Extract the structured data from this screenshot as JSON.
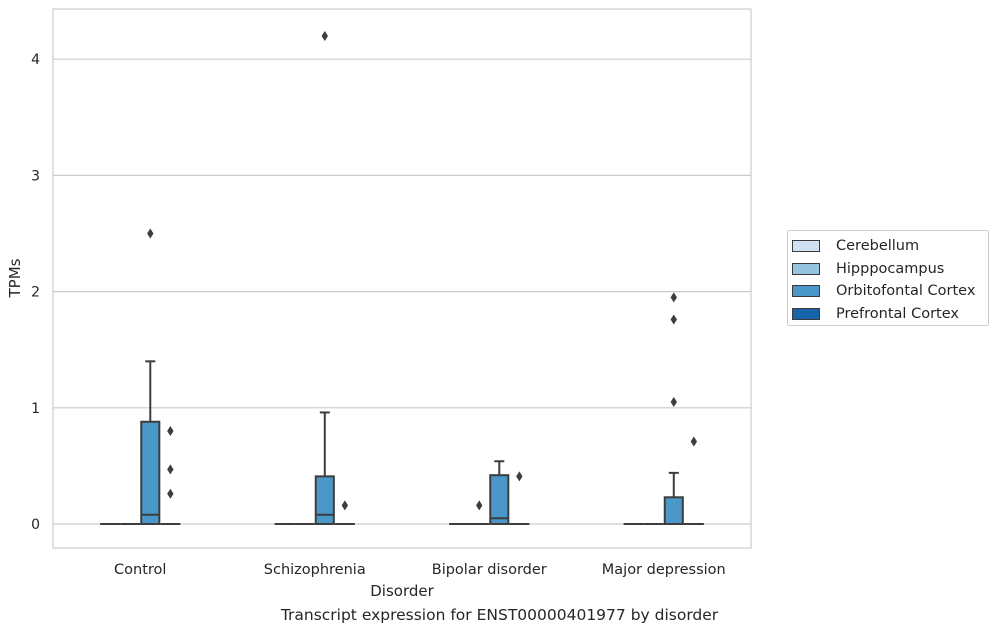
{
  "chart_data": {
    "type": "box",
    "caption": "Transcript expression for ENST00000401977 by disorder",
    "xlabel": "Disorder",
    "ylabel": "TPMs",
    "ylim": [
      -0.2,
      4.3
    ],
    "yticks": [
      0,
      1,
      2,
      3,
      4
    ],
    "categories": [
      "Control",
      "Schizophrenia",
      "Bipolar disorder",
      "Major depression"
    ],
    "grid": "horizontal",
    "legend_position": "right",
    "series": [
      {
        "name": "Cerebellum",
        "color": "#d0e1f2",
        "boxes": [
          {
            "q1": 0,
            "median": 0,
            "q3": 0,
            "whisker_low": 0,
            "whisker_high": 0,
            "outliers": []
          },
          {
            "q1": 0,
            "median": 0,
            "q3": 0,
            "whisker_low": 0,
            "whisker_high": 0,
            "outliers": []
          },
          {
            "q1": 0,
            "median": 0,
            "q3": 0,
            "whisker_low": 0,
            "whisker_high": 0,
            "outliers": []
          },
          {
            "q1": 0,
            "median": 0,
            "q3": 0,
            "whisker_low": 0,
            "whisker_high": 0,
            "outliers": []
          }
        ]
      },
      {
        "name": "Hipppocampus",
        "color": "#94c4df",
        "boxes": [
          {
            "q1": 0,
            "median": 0,
            "q3": 0,
            "whisker_low": 0,
            "whisker_high": 0,
            "outliers": []
          },
          {
            "q1": 0,
            "median": 0,
            "q3": 0,
            "whisker_low": 0,
            "whisker_high": 0,
            "outliers": []
          },
          {
            "q1": 0,
            "median": 0,
            "q3": 0,
            "whisker_low": 0,
            "whisker_high": 0,
            "outliers": [
              0.16
            ]
          },
          {
            "q1": 0,
            "median": 0,
            "q3": 0,
            "whisker_low": 0,
            "whisker_high": 0,
            "outliers": []
          }
        ]
      },
      {
        "name": "Orbitofontal Cortex",
        "color": "#4a98c9",
        "boxes": [
          {
            "q1": 0,
            "median": 0.08,
            "q3": 0.88,
            "whisker_low": 0,
            "whisker_high": 1.4,
            "outliers": [
              2.5
            ]
          },
          {
            "q1": 0,
            "median": 0.08,
            "q3": 0.41,
            "whisker_low": 0,
            "whisker_high": 0.96,
            "outliers": [
              4.2
            ]
          },
          {
            "q1": 0,
            "median": 0.05,
            "q3": 0.42,
            "whisker_low": 0,
            "whisker_high": 0.54,
            "outliers": []
          },
          {
            "q1": 0,
            "median": 0,
            "q3": 0.23,
            "whisker_low": 0,
            "whisker_high": 0.44,
            "outliers": [
              1.95,
              1.76,
              1.05
            ]
          }
        ]
      },
      {
        "name": "Prefrontal Cortex",
        "color": "#1764ab",
        "boxes": [
          {
            "q1": 0,
            "median": 0,
            "q3": 0,
            "whisker_low": 0,
            "whisker_high": 0,
            "outliers": [
              0.8,
              0.47,
              0.26
            ]
          },
          {
            "q1": 0,
            "median": 0,
            "q3": 0,
            "whisker_low": 0,
            "whisker_high": 0,
            "outliers": [
              0.16
            ]
          },
          {
            "q1": 0,
            "median": 0,
            "q3": 0,
            "whisker_low": 0,
            "whisker_high": 0,
            "outliers": [
              0.41
            ]
          },
          {
            "q1": 0,
            "median": 0,
            "q3": 0,
            "whisker_low": 0,
            "whisker_high": 0,
            "outliers": [
              0.71
            ]
          }
        ]
      }
    ]
  }
}
